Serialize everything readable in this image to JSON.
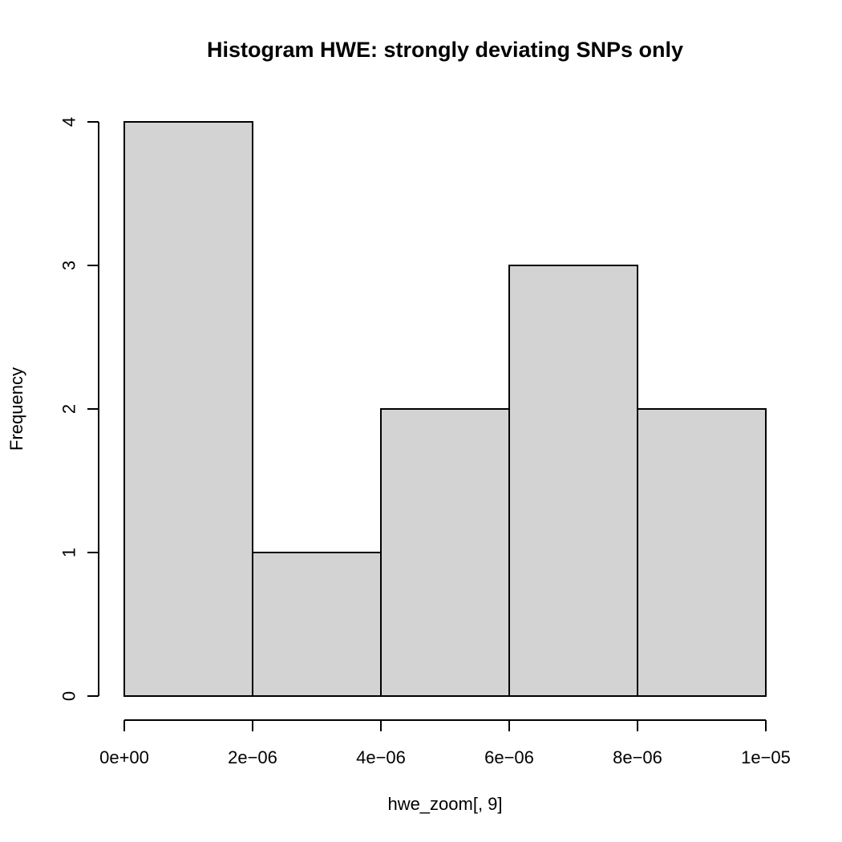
{
  "chart_data": {
    "type": "bar",
    "title": "Histogram HWE: strongly deviating SNPs only",
    "xlabel": "hwe_zoom[, 9]",
    "ylabel": "Frequency",
    "bin_edges": [
      0,
      2e-06,
      4e-06,
      6e-06,
      8e-06,
      1e-05
    ],
    "values": [
      4,
      1,
      2,
      3,
      2
    ],
    "xlim": [
      0,
      1e-05
    ],
    "ylim": [
      0,
      4
    ],
    "x_ticks": [
      {
        "value": 0,
        "label": "0e+00"
      },
      {
        "value": 2e-06,
        "label": "2e−06"
      },
      {
        "value": 4e-06,
        "label": "4e−06"
      },
      {
        "value": 6e-06,
        "label": "6e−06"
      },
      {
        "value": 8e-06,
        "label": "8e−06"
      },
      {
        "value": 1e-05,
        "label": "1e−05"
      }
    ],
    "y_ticks": [
      {
        "value": 0,
        "label": "0"
      },
      {
        "value": 1,
        "label": "1"
      },
      {
        "value": 2,
        "label": "2"
      },
      {
        "value": 3,
        "label": "3"
      },
      {
        "value": 4,
        "label": "4"
      }
    ],
    "grid": false,
    "bar_color": "#d3d3d3",
    "edge_color": "#000000"
  }
}
